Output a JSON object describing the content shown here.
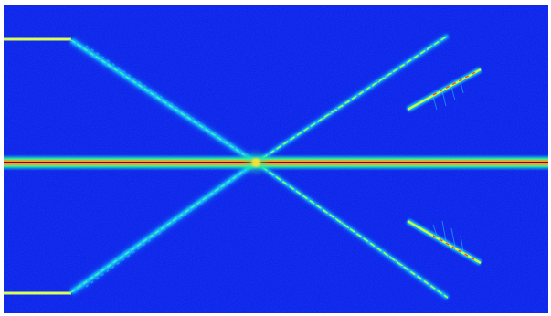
{
  "image": {
    "description_type": "false-color intensity map / spectrogram",
    "colormap": [
      "#0a14e6",
      "#0ea0ff",
      "#1ef2a0",
      "#c8ff3a",
      "#ffe83a",
      "#ff4a1a",
      "#b0000a"
    ],
    "background_color": "#0b1fe8"
  },
  "chart_data": {
    "type": "heatmap",
    "title": "",
    "xlabel": "",
    "ylabel": "",
    "grid": false,
    "legend": false
  }
}
